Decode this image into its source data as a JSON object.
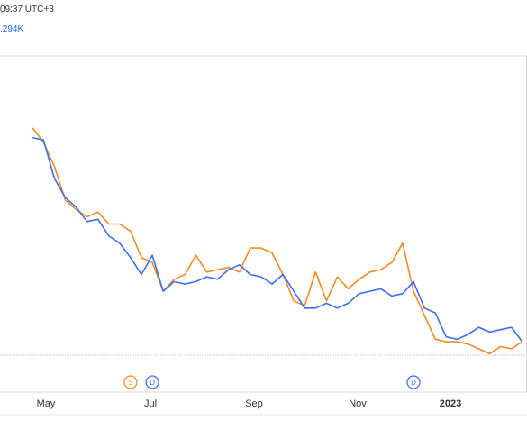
{
  "header": {
    "time_text": "09:37 UTC+3",
    "value_text": ".294K"
  },
  "colors": {
    "series_orange": "#f28c1e",
    "series_blue": "#3b6ef5",
    "grid": "#d9d9d9",
    "baseline": "#b7c3f3"
  },
  "chart_data": {
    "type": "line",
    "grid": true,
    "x_ticks": [
      {
        "label": "May",
        "bold": false
      },
      {
        "label": "Jul",
        "bold": false
      },
      {
        "label": "Sep",
        "bold": false
      },
      {
        "label": "Nov",
        "bold": false
      },
      {
        "label": "2023",
        "bold": true
      }
    ],
    "x": [
      "2022-04-10",
      "2022-04-17",
      "2022-04-24",
      "2022-05-01",
      "2022-05-08",
      "2022-05-15",
      "2022-05-22",
      "2022-05-29",
      "2022-06-05",
      "2022-06-12",
      "2022-06-19",
      "2022-06-26",
      "2022-07-03",
      "2022-07-10",
      "2022-07-17",
      "2022-07-24",
      "2022-07-31",
      "2022-08-07",
      "2022-08-14",
      "2022-08-21",
      "2022-08-28",
      "2022-09-04",
      "2022-09-11",
      "2022-09-18",
      "2022-09-25",
      "2022-10-02",
      "2022-10-09",
      "2022-10-16",
      "2022-10-23",
      "2022-10-30",
      "2022-11-06",
      "2022-11-13",
      "2022-11-20",
      "2022-11-27",
      "2022-12-04",
      "2022-12-11",
      "2022-12-18",
      "2022-12-25",
      "2023-01-01",
      "2023-01-08",
      "2023-01-15",
      "2023-01-22",
      "2023-01-29",
      "2023-02-05",
      "2023-02-12",
      "2023-02-19"
    ],
    "series": [
      {
        "values": [
          5.0,
          4.7,
          4.2,
          3.5,
          3.3,
          3.15,
          3.25,
          3.0,
          3.0,
          2.85,
          2.3,
          2.2,
          1.6,
          1.85,
          1.95,
          2.35,
          2.0,
          2.05,
          2.1,
          2.0,
          2.5,
          2.5,
          2.4,
          1.95,
          1.4,
          1.3,
          2.0,
          1.4,
          1.9,
          1.65,
          1.85,
          2.0,
          2.05,
          2.2,
          2.6,
          1.6,
          1.1,
          0.6,
          0.55,
          0.55,
          0.5,
          0.4,
          0.3,
          0.45,
          0.4,
          0.55
        ]
      },
      {
        "values": [
          4.8,
          4.75,
          3.95,
          3.55,
          3.35,
          3.05,
          3.1,
          2.75,
          2.6,
          2.3,
          1.95,
          2.35,
          1.6,
          1.8,
          1.75,
          1.8,
          1.9,
          1.85,
          2.05,
          2.15,
          1.95,
          1.9,
          1.75,
          1.95,
          1.6,
          1.25,
          1.25,
          1.35,
          1.25,
          1.35,
          1.55,
          1.6,
          1.65,
          1.5,
          1.55,
          1.8,
          1.25,
          1.15,
          0.65,
          0.6,
          0.7,
          0.85,
          0.75,
          0.8,
          0.85,
          0.55
        ]
      }
    ],
    "event_markers": [
      {
        "label": "S",
        "date": "2022-06-12",
        "color": "#f28c1e"
      },
      {
        "label": "D",
        "date": "2022-06-26",
        "color": "#3b6ef5"
      },
      {
        "label": "D",
        "date": "2022-12-11",
        "color": "#3b6ef5"
      }
    ]
  }
}
